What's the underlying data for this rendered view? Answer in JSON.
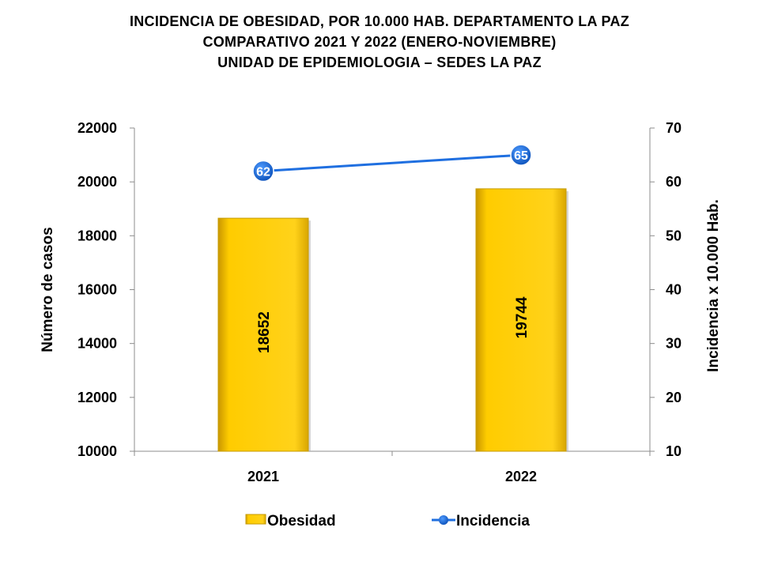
{
  "title_lines": [
    "INCIDENCIA DE OBESIDAD, POR 10.000 HAB. DEPARTAMENTO LA PAZ",
    "COMPARATIVO 2021 Y 2022 (ENERO-NOVIEMBRE)",
    "UNIDAD DE EPIDEMIOLOGIA – SEDES LA PAZ"
  ],
  "chart_data": {
    "type": "bar",
    "categories": [
      "2021",
      "2022"
    ],
    "series": [
      {
        "name": "Obesidad",
        "type": "bar",
        "axis": "left",
        "values": [
          18652,
          19744
        ],
        "color": "#FFCC00"
      },
      {
        "name": "Incidencia",
        "type": "line",
        "axis": "right",
        "values": [
          62,
          65
        ],
        "color": "#1F6FE0"
      }
    ],
    "ylabel": "Número de casos",
    "y2label": "Incidencia x 10.000 Hab.",
    "ylim": [
      10000,
      22000
    ],
    "yticks": [
      "10000",
      "12000",
      "14000",
      "16000",
      "18000",
      "20000",
      "22000"
    ],
    "y2lim": [
      10,
      70
    ],
    "y2ticks": [
      "10",
      "20",
      "30",
      "40",
      "50",
      "60",
      "70"
    ],
    "grid": false,
    "legend_position": "bottom"
  }
}
